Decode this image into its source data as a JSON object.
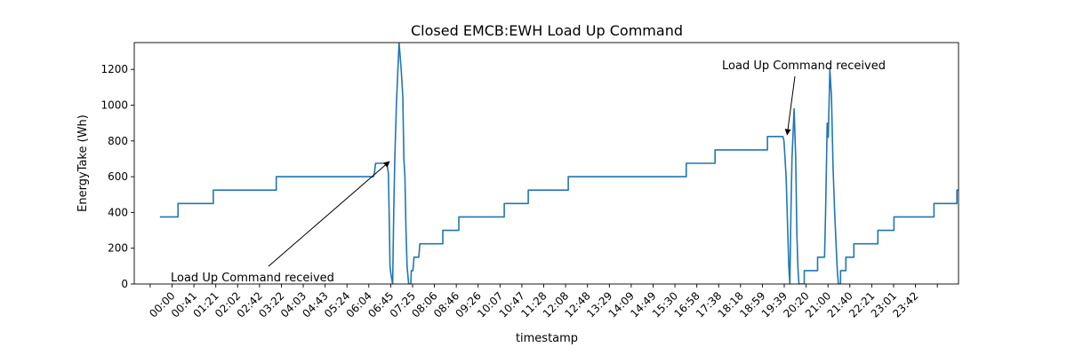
{
  "chart_data": {
    "type": "line",
    "title": "Closed EMCB:EWH Load Up Command",
    "xlabel": "timestamp",
    "ylabel": "EnergyTake (Wh)",
    "xlim_minutes": [
      -48,
      1496
    ],
    "ylim": [
      0,
      1350
    ],
    "yticks": [
      0,
      200,
      400,
      600,
      800,
      1000,
      1200
    ],
    "grid": false,
    "xtick_labels": [
      "00:00",
      "00:41",
      "01:21",
      "02:02",
      "02:42",
      "03:22",
      "04:03",
      "04:43",
      "05:24",
      "06:04",
      "06:45",
      "07:25",
      "08:06",
      "08:46",
      "09:26",
      "10:07",
      "10:47",
      "11:28",
      "12:08",
      "12:48",
      "13:29",
      "14:09",
      "14:49",
      "15:30",
      "16:58",
      "17:38",
      "18:18",
      "18:59",
      "19:39",
      "20:20",
      "21:00",
      "21:40",
      "22:21",
      "23:01",
      "23:42"
    ],
    "series": [
      {
        "color": "#1f77b4",
        "points": [
          [
            0,
            375
          ],
          [
            34,
            375
          ],
          [
            34,
            450
          ],
          [
            100,
            450
          ],
          [
            100,
            525
          ],
          [
            218,
            525
          ],
          [
            218,
            600
          ],
          [
            400,
            600
          ],
          [
            402,
            625
          ],
          [
            404,
            675
          ],
          [
            425,
            675
          ],
          [
            428,
            620
          ],
          [
            430,
            300
          ],
          [
            431,
            100
          ],
          [
            433,
            50
          ],
          [
            436,
            0
          ],
          [
            438,
            400
          ],
          [
            440,
            700
          ],
          [
            443,
            1000
          ],
          [
            448,
            1350
          ],
          [
            452,
            1200
          ],
          [
            455,
            1050
          ],
          [
            457,
            700
          ],
          [
            459,
            600
          ],
          [
            461,
            300
          ],
          [
            463,
            100
          ],
          [
            466,
            0
          ],
          [
            470,
            0
          ],
          [
            471,
            75
          ],
          [
            474,
            75
          ],
          [
            476,
            150
          ],
          [
            485,
            150
          ],
          [
            487,
            225
          ],
          [
            530,
            225
          ],
          [
            530,
            300
          ],
          [
            560,
            300
          ],
          [
            560,
            375
          ],
          [
            645,
            375
          ],
          [
            645,
            450
          ],
          [
            690,
            450
          ],
          [
            690,
            525
          ],
          [
            765,
            525
          ],
          [
            765,
            600
          ],
          [
            986,
            600
          ],
          [
            986,
            675
          ],
          [
            1040,
            675
          ],
          [
            1040,
            750
          ],
          [
            1138,
            750
          ],
          [
            1138,
            825
          ],
          [
            1167,
            825
          ],
          [
            1169,
            800
          ],
          [
            1173,
            600
          ],
          [
            1176,
            300
          ],
          [
            1178,
            100
          ],
          [
            1180,
            0
          ],
          [
            1182,
            400
          ],
          [
            1184,
            700
          ],
          [
            1188,
            980
          ],
          [
            1191,
            700
          ],
          [
            1193,
            300
          ],
          [
            1195,
            100
          ],
          [
            1197,
            0
          ],
          [
            1207,
            0
          ],
          [
            1207,
            75
          ],
          [
            1232,
            75
          ],
          [
            1232,
            150
          ],
          [
            1245,
            150
          ],
          [
            1247,
            400
          ],
          [
            1250,
            900
          ],
          [
            1252,
            820
          ],
          [
            1255,
            1200
          ],
          [
            1258,
            1050
          ],
          [
            1261,
            650
          ],
          [
            1264,
            400
          ],
          [
            1267,
            200
          ],
          [
            1269,
            75
          ],
          [
            1271,
            0
          ],
          [
            1275,
            0
          ],
          [
            1275,
            75
          ],
          [
            1285,
            75
          ],
          [
            1285,
            150
          ],
          [
            1300,
            150
          ],
          [
            1300,
            225
          ],
          [
            1345,
            225
          ],
          [
            1345,
            300
          ],
          [
            1375,
            300
          ],
          [
            1375,
            375
          ],
          [
            1450,
            375
          ],
          [
            1450,
            450
          ],
          [
            1493,
            450
          ],
          [
            1493,
            525
          ],
          [
            1496,
            525
          ]
        ]
      }
    ],
    "annotations": [
      {
        "text": "Load Up Command received",
        "xy": [
          420,
          675
        ],
        "xytext": [
          0,
          0
        ]
      },
      {
        "text": "Load Up Command received",
        "xy": [
          1165,
          825
        ],
        "xytext": [
          1078,
          1200
        ]
      }
    ]
  }
}
